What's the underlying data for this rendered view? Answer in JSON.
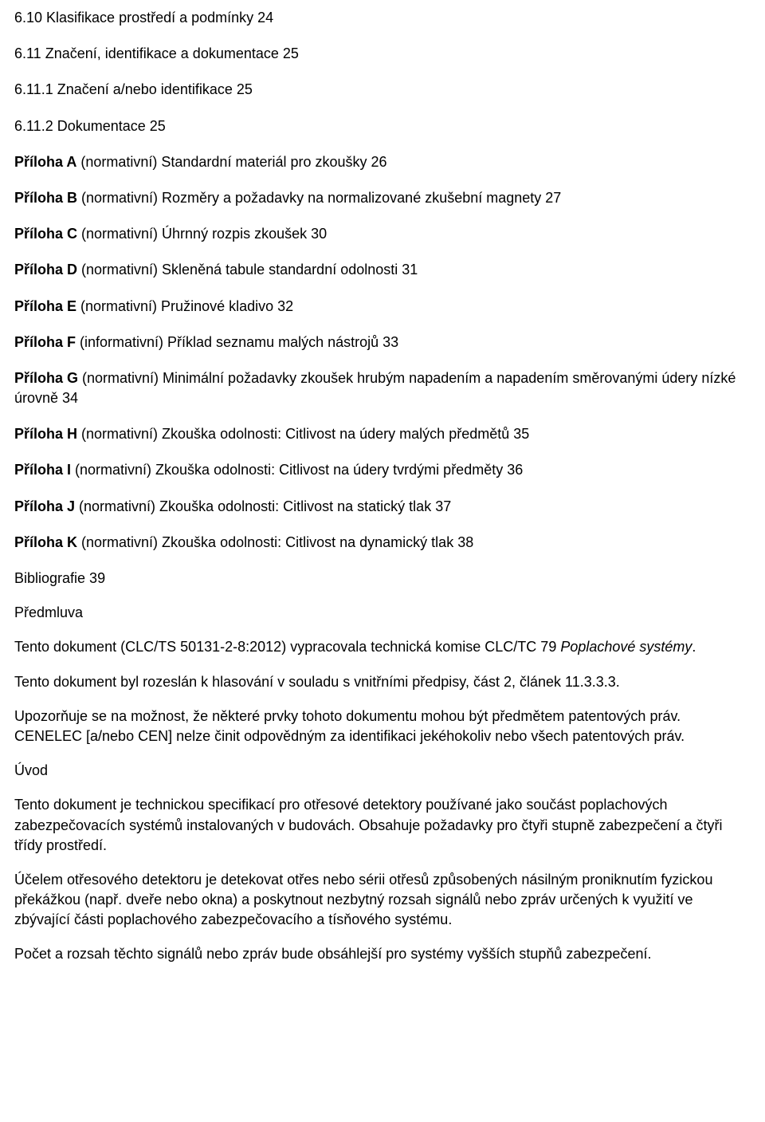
{
  "toc": {
    "l1": "6.10 Klasifikace prostředí a podmínky 24",
    "l2": "6.11 Značení, identifikace a dokumentace 25",
    "l3": "6.11.1 Značení a/nebo identifikace 25",
    "l4": "6.11.2 Dokumentace 25",
    "l5": {
      "b": "Příloha A",
      "r": " (normativní) Standardní materiál pro zkoušky 26"
    },
    "l6": {
      "b": "Příloha B",
      "r": " (normativní) Rozměry a požadavky na normalizované zkušební magnety 27"
    },
    "l7": {
      "b": "Příloha C",
      "r": " (normativní) Úhrnný rozpis zkoušek 30"
    },
    "l8": {
      "b": "Příloha D",
      "r": " (normativní) Skleněná tabule standardní odolnosti 31"
    },
    "l9": {
      "b": "Příloha E",
      "r": " (normativní) Pružinové kladivo 32"
    },
    "l10": {
      "b": "Příloha F",
      "r": " (informativní) Příklad seznamu malých nástrojů 33"
    },
    "l11": {
      "b": "Příloha G",
      "r": " (normativní) Minimální požadavky zkoušek hrubým napadením a napadením směrovanými údery nízké úrovně 34"
    },
    "l12": {
      "b": "Příloha H",
      "r": " (normativní) Zkouška odolnosti: Citlivost na údery malých předmětů 35"
    },
    "l13": {
      "b": "Příloha I",
      "r": " (normativní) Zkouška odolnosti: Citlivost na údery tvrdými předměty 36"
    },
    "l14": {
      "b": "Příloha J",
      "r": " (normativní) Zkouška odolnosti: Citlivost na statický tlak 37"
    },
    "l15": {
      "b": "Příloha K",
      "r": " (normativní) Zkouška odolnosti: Citlivost na dynamický tlak 38"
    },
    "biblio": "Bibliografie 39"
  },
  "h_predmluva": "Předmluva",
  "p1a": "Tento dokument (CLC/TS 50131-2-8:2012) vypracovala technická komise CLC/TC 79 ",
  "p1b": "Poplachové systémy",
  "p1c": ".",
  "p2": "Tento dokument byl rozeslán k hlasování v souladu s vnitřními předpisy, část 2, článek 11.3.3.3.",
  "p3": "Upozorňuje se na možnost, že některé prvky tohoto dokumentu mohou být předmětem patentových práv. CENELEC [a/nebo CEN] nelze činit odpovědným za identifikaci jekéhokoliv nebo všech patentových práv.",
  "h_uvod": "Úvod",
  "p4": "Tento dokument je technickou specifikací pro otřesové detektory používané jako součást poplachových zabezpečovacích systémů instalovaných v budovách. Obsahuje požadavky pro čtyři stupně zabezpečení a čtyři třídy prostředí.",
  "p5": "Účelem otřesového detektoru je detekovat otřes nebo sérii otřesů způsobených násilným proniknutím fyzickou překážkou (např. dveře nebo okna) a poskytnout nezbytný rozsah signálů nebo zpráv určených k využití ve zbývající části poplachového zabezpečovacího a tísňového systému.",
  "p6": "Počet a rozsah těchto signálů nebo zpráv bude obsáhlejší pro systémy vyšších stupňů zabezpečení."
}
